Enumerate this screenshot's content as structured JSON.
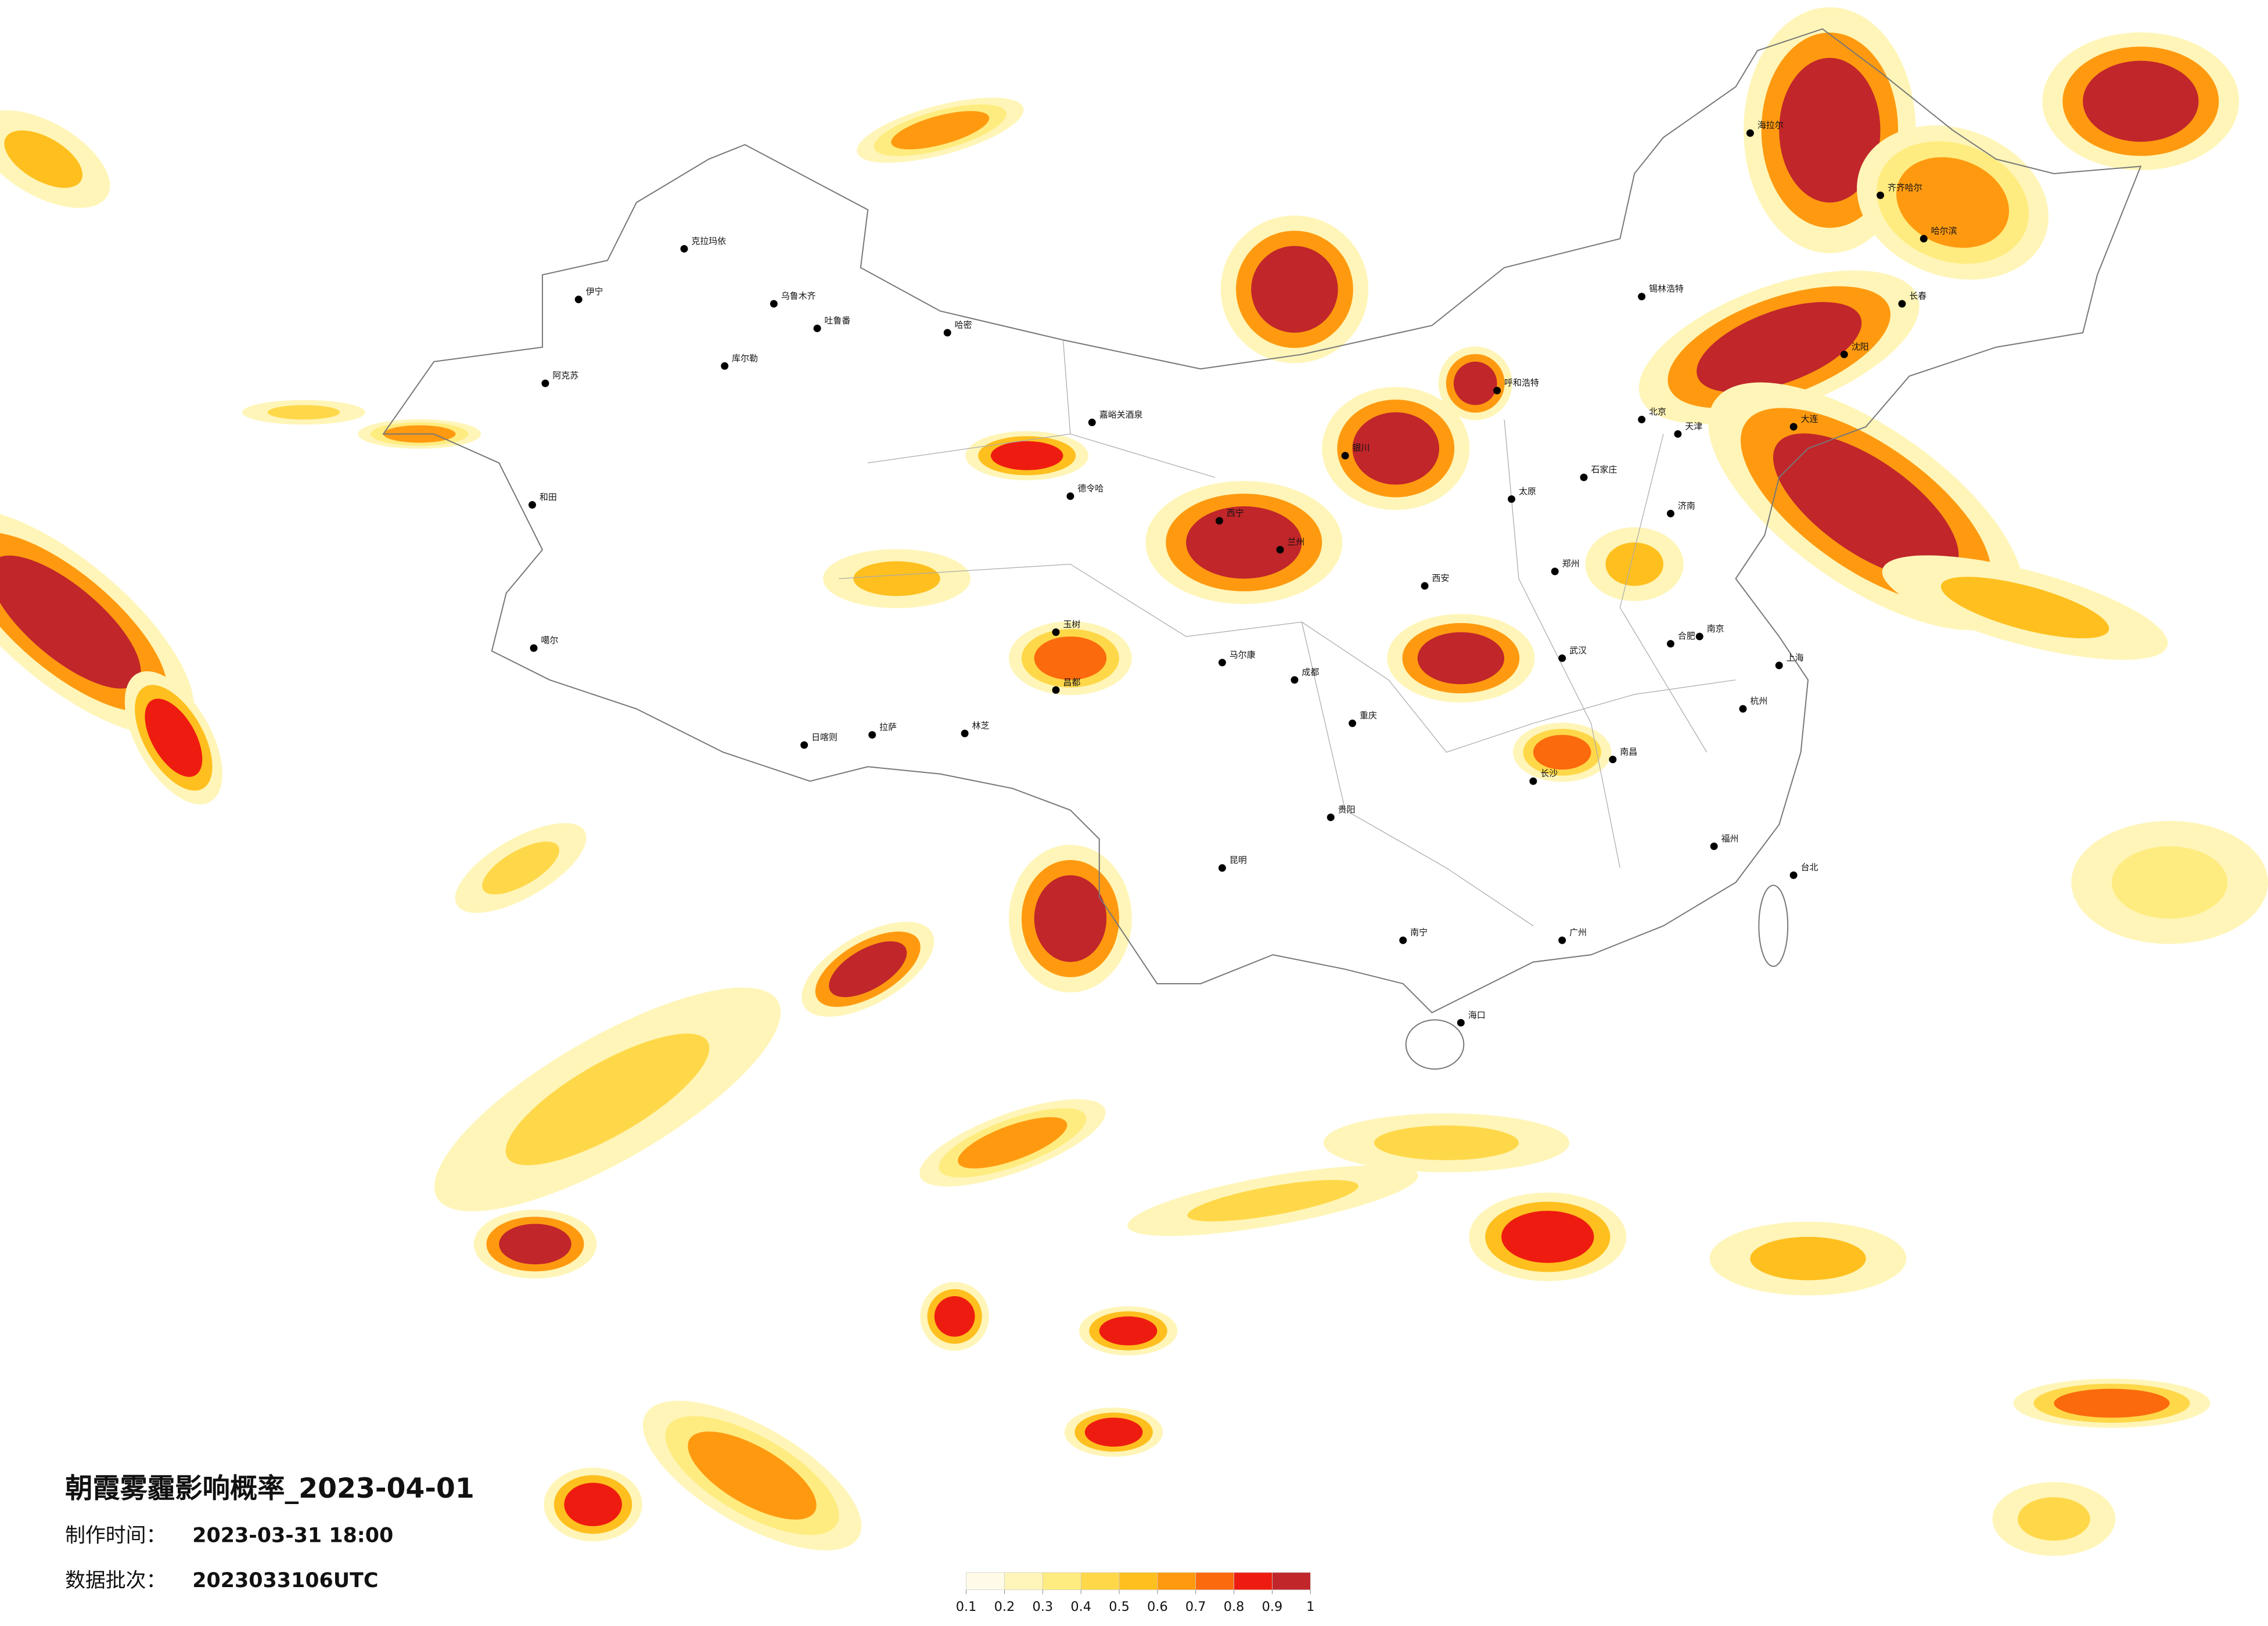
{
  "title": "朝霞雾霾影响概率_2023-04-01",
  "production_time": {
    "label": "制作时间：",
    "value": "2023-03-31 18:00"
  },
  "data_batch": {
    "label": "数据批次：",
    "value": "2023033106UTC"
  },
  "legend": {
    "ticks": [
      0.1,
      0.2,
      0.3,
      0.4,
      0.5,
      0.6,
      0.7,
      0.8,
      0.9,
      1
    ],
    "colors": [
      "#fffbe8",
      "#fff5b8",
      "#ffec80",
      "#ffd84a",
      "#ffbf1e",
      "#ff9a10",
      "#fb6a0c",
      "#ee1c10",
      "#c0262a"
    ]
  },
  "cities": [
    "克拉玛依",
    "乌鲁木齐",
    "伊宁",
    "阿克苏",
    "和田",
    "吐鲁番",
    "哈密",
    "库尔勒",
    "噶尔",
    "日喀则",
    "拉萨",
    "林芝",
    "昌都",
    "西宁",
    "兰州",
    "银川",
    "呼和浩特",
    "北京",
    "天津",
    "石家庄",
    "太原",
    "济南",
    "郑州",
    "西安",
    "成都",
    "重庆",
    "武汉",
    "南京",
    "上海",
    "杭州",
    "合肥",
    "长沙",
    "南昌",
    "福州",
    "广州",
    "南宁",
    "贵阳",
    "昆明",
    "海口",
    "台北",
    "哈尔滨",
    "长春",
    "沈阳",
    "大连",
    "海拉尔",
    "齐齐哈尔",
    "锡林浩特",
    "嘉峪关酒泉",
    "德令哈",
    "玉树",
    "马尔康"
  ]
}
